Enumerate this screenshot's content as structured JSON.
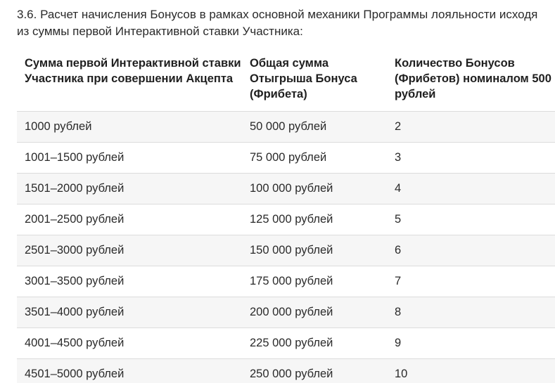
{
  "intro_text": "3.6. Расчет начисления Бонусов в рамках основной механики Программы лояльности исходя из суммы первой Интерактивной ставки Участника:",
  "table": {
    "headers": [
      "Сумма первой Интерактивной ставки Участника при совершении Акцепта",
      "Общая сумма Отыгрыша Бонуса (Фрибета)",
      "Количество Бонусов (Фрибетов) номиналом 500 рублей"
    ],
    "rows": [
      [
        "1000 рублей",
        "50 000 рублей",
        "2"
      ],
      [
        "1001–1500 рублей",
        "75 000 рублей",
        "3"
      ],
      [
        "1501–2000 рублей",
        "100 000 рублей",
        "4"
      ],
      [
        "2001–2500 рублей",
        "125 000 рублей",
        "5"
      ],
      [
        "2501–3000 рублей",
        "150 000 рублей",
        "6"
      ],
      [
        "3001–3500 рублей",
        "175 000 рублей",
        "7"
      ],
      [
        "3501–4000 рублей",
        "200 000 рублей",
        "8"
      ],
      [
        "4001–4500 рублей",
        "225 000 рублей",
        "9"
      ],
      [
        "4501–5000 рублей",
        "250 000 рублей",
        "10"
      ]
    ]
  },
  "colors": {
    "text": "#2a2a2a",
    "shaded_row": "#f6f6f6",
    "divider": "#dcdcdc"
  }
}
